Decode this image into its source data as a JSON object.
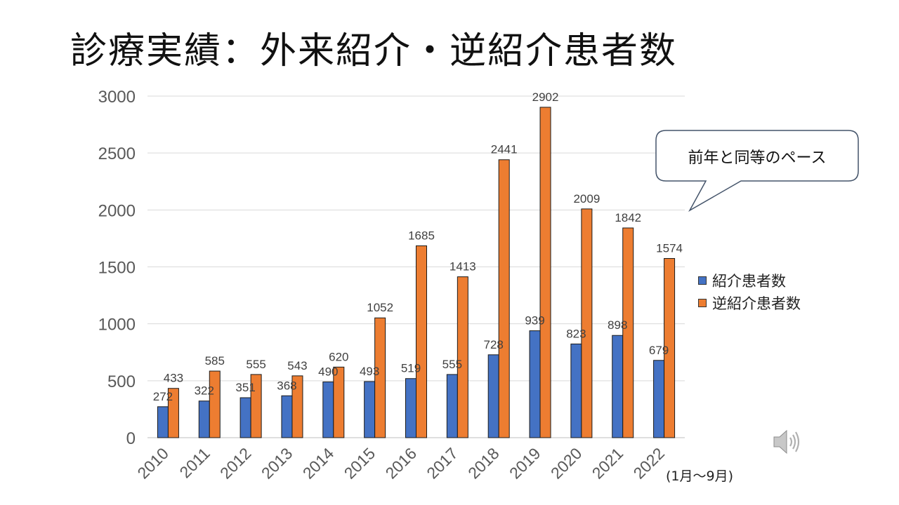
{
  "title": "診療実績：外来紹介・逆紹介患者数",
  "callout": "前年と同等のペース",
  "note": "(1月～9月)",
  "chart_data": {
    "type": "bar",
    "categories": [
      "2010",
      "2011",
      "2012",
      "2013",
      "2014",
      "2015",
      "2016",
      "2017",
      "2018",
      "2019",
      "2020",
      "2021",
      "2022"
    ],
    "series": [
      {
        "name": "紹介患者数",
        "color": "#4472c4",
        "values": [
          272,
          322,
          351,
          368,
          490,
          493,
          519,
          555,
          728,
          939,
          823,
          898,
          679
        ]
      },
      {
        "name": "逆紹介患者数",
        "color": "#ed7d31",
        "values": [
          433,
          585,
          555,
          543,
          620,
          1052,
          1685,
          1413,
          2441,
          2902,
          2009,
          1842,
          1574
        ]
      }
    ],
    "ylim": [
      0,
      3000
    ],
    "yticks": [
      0,
      500,
      1000,
      1500,
      2000,
      2500,
      3000
    ],
    "grid": true,
    "legend_position": "right",
    "xlabel": "",
    "ylabel": ""
  }
}
